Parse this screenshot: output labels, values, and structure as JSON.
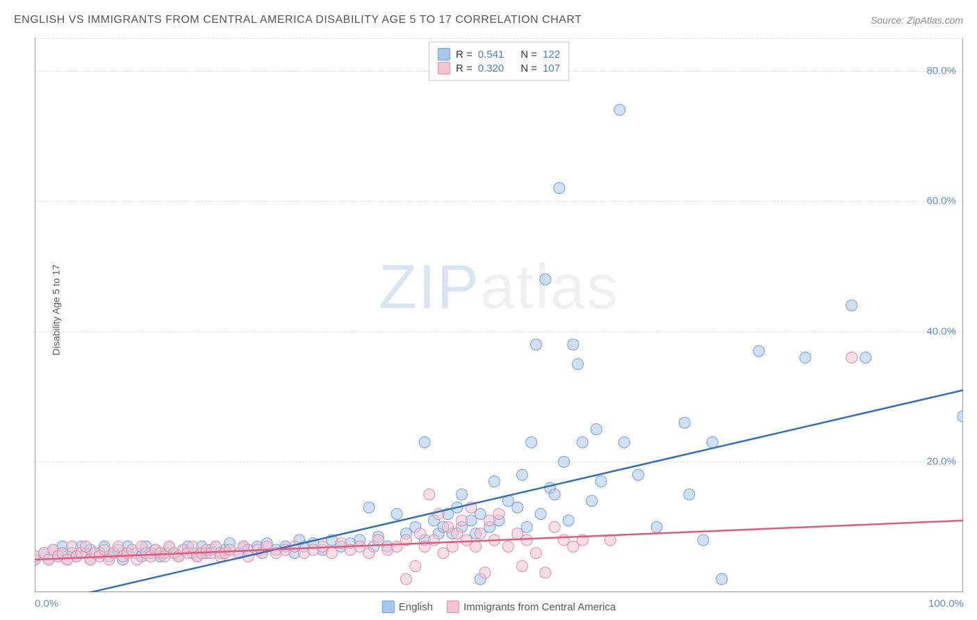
{
  "header": {
    "title": "ENGLISH VS IMMIGRANTS FROM CENTRAL AMERICA DISABILITY AGE 5 TO 17 CORRELATION CHART",
    "source": "Source: ZipAtlas.com"
  },
  "watermark": {
    "part1": "ZIP",
    "part2": "atlas"
  },
  "chart": {
    "type": "scatter",
    "y_axis_label": "Disability Age 5 to 17",
    "background_color": "#ffffff",
    "grid_color": "#dddddd",
    "axis_color": "#999999",
    "tick_color": "#5b8dd6",
    "xlim": [
      0,
      100
    ],
    "ylim": [
      0,
      85
    ],
    "x_ticks": [
      {
        "value": 0,
        "label": "0.0%"
      },
      {
        "value": 100,
        "label": "100.0%"
      }
    ],
    "y_ticks": [
      {
        "value": 20,
        "label": "20.0%"
      },
      {
        "value": 40,
        "label": "40.0%"
      },
      {
        "value": 60,
        "label": "60.0%"
      },
      {
        "value": 80,
        "label": "80.0%"
      }
    ],
    "marker_radius": 8,
    "marker_opacity": 0.55,
    "line_width": 2.5,
    "series": [
      {
        "name": "English",
        "fill": "#a9c6ec",
        "stroke": "#6f9fd8",
        "line_color": "#2f6fc1",
        "r_value": "0.541",
        "n_value": "122",
        "regression": {
          "x1": 0,
          "y1": -2,
          "x2": 100,
          "y2": 31
        },
        "points": [
          [
            0,
            5
          ],
          [
            1,
            6
          ],
          [
            1.5,
            5
          ],
          [
            2,
            6.5
          ],
          [
            2.5,
            5.5
          ],
          [
            3,
            6
          ],
          [
            3,
            7
          ],
          [
            3.5,
            5
          ],
          [
            4,
            6
          ],
          [
            4.5,
            5.5
          ],
          [
            5,
            7
          ],
          [
            5.5,
            6
          ],
          [
            6,
            6.5
          ],
          [
            6,
            5
          ],
          [
            7,
            6
          ],
          [
            7.5,
            7
          ],
          [
            8,
            5.5
          ],
          [
            8.5,
            6
          ],
          [
            9,
            6.5
          ],
          [
            9.5,
            5
          ],
          [
            10,
            6
          ],
          [
            10,
            7
          ],
          [
            11,
            6
          ],
          [
            11.5,
            5.5
          ],
          [
            12,
            7
          ],
          [
            12.5,
            6
          ],
          [
            13,
            6.5
          ],
          [
            13.5,
            5.5
          ],
          [
            14,
            6
          ],
          [
            14.5,
            7
          ],
          [
            15,
            6
          ],
          [
            15.5,
            5.5
          ],
          [
            16,
            6.5
          ],
          [
            16.5,
            7
          ],
          [
            17,
            6
          ],
          [
            17.5,
            5.5
          ],
          [
            18,
            7
          ],
          [
            18.5,
            6
          ],
          [
            19,
            6.5
          ],
          [
            19.5,
            7
          ],
          [
            20,
            6
          ],
          [
            20.5,
            6.5
          ],
          [
            21,
            7.5
          ],
          [
            22,
            6
          ],
          [
            22.5,
            7
          ],
          [
            23,
            6.5
          ],
          [
            24,
            7
          ],
          [
            24.5,
            6
          ],
          [
            25,
            7.5
          ],
          [
            26,
            6.5
          ],
          [
            27,
            7
          ],
          [
            28,
            6
          ],
          [
            28.5,
            8
          ],
          [
            29,
            7
          ],
          [
            30,
            7.5
          ],
          [
            31,
            6.5
          ],
          [
            32,
            8
          ],
          [
            33,
            7
          ],
          [
            34,
            7.5
          ],
          [
            35,
            8
          ],
          [
            36,
            13
          ],
          [
            36.5,
            7
          ],
          [
            37,
            8.5
          ],
          [
            38,
            7
          ],
          [
            39,
            12
          ],
          [
            40,
            9
          ],
          [
            41,
            10
          ],
          [
            42,
            8
          ],
          [
            42,
            23
          ],
          [
            43,
            11
          ],
          [
            43.5,
            9
          ],
          [
            44,
            10
          ],
          [
            44.5,
            12
          ],
          [
            45,
            9
          ],
          [
            45.5,
            13
          ],
          [
            46,
            10
          ],
          [
            46,
            15
          ],
          [
            47,
            11
          ],
          [
            47.5,
            9
          ],
          [
            48,
            12
          ],
          [
            48,
            2
          ],
          [
            49,
            10
          ],
          [
            49.5,
            17
          ],
          [
            50,
            11
          ],
          [
            51,
            14
          ],
          [
            52,
            13
          ],
          [
            52.5,
            18
          ],
          [
            53,
            10
          ],
          [
            53.5,
            23
          ],
          [
            54,
            38
          ],
          [
            54.5,
            12
          ],
          [
            55,
            48
          ],
          [
            55.5,
            16
          ],
          [
            56,
            15
          ],
          [
            56.5,
            62
          ],
          [
            57,
            20
          ],
          [
            57.5,
            11
          ],
          [
            58,
            38
          ],
          [
            58.5,
            35
          ],
          [
            59,
            23
          ],
          [
            60,
            14
          ],
          [
            60.5,
            25
          ],
          [
            61,
            17
          ],
          [
            63,
            74
          ],
          [
            63.5,
            23
          ],
          [
            65,
            18
          ],
          [
            67,
            10
          ],
          [
            70,
            26
          ],
          [
            70.5,
            15
          ],
          [
            72,
            8
          ],
          [
            73,
            23
          ],
          [
            74,
            2
          ],
          [
            78,
            37
          ],
          [
            83,
            36
          ],
          [
            88,
            44
          ],
          [
            89.5,
            36
          ],
          [
            100,
            27
          ]
        ]
      },
      {
        "name": "Immigrants from Central America",
        "fill": "#f3c3cf",
        "stroke": "#e28ba2",
        "line_color": "#e05a7c",
        "r_value": "0.320",
        "n_value": "107",
        "regression": {
          "x1": 0,
          "y1": 5,
          "x2": 100,
          "y2": 11
        },
        "points": [
          [
            0,
            5.5
          ],
          [
            1,
            6
          ],
          [
            1.5,
            5
          ],
          [
            2,
            6.5
          ],
          [
            2.5,
            5.5
          ],
          [
            3,
            6
          ],
          [
            3.5,
            5
          ],
          [
            4,
            7
          ],
          [
            4.5,
            5.5
          ],
          [
            5,
            6
          ],
          [
            5.5,
            7
          ],
          [
            6,
            5
          ],
          [
            6.5,
            6
          ],
          [
            7,
            5.5
          ],
          [
            7.5,
            6.5
          ],
          [
            8,
            5
          ],
          [
            8.5,
            6
          ],
          [
            9,
            7
          ],
          [
            9.5,
            5.5
          ],
          [
            10,
            6
          ],
          [
            10.5,
            6.5
          ],
          [
            11,
            5
          ],
          [
            11.5,
            7
          ],
          [
            12,
            6
          ],
          [
            12.5,
            5.5
          ],
          [
            13,
            6.5
          ],
          [
            13.5,
            6
          ],
          [
            14,
            5.5
          ],
          [
            14.5,
            7
          ],
          [
            15,
            6
          ],
          [
            15.5,
            5.5
          ],
          [
            16,
            6.5
          ],
          [
            16.5,
            6
          ],
          [
            17,
            7
          ],
          [
            17.5,
            5.5
          ],
          [
            18,
            6
          ],
          [
            18.5,
            6.5
          ],
          [
            19,
            6
          ],
          [
            19.5,
            7
          ],
          [
            20,
            5.5
          ],
          [
            20.5,
            6
          ],
          [
            21,
            6.5
          ],
          [
            22,
            6
          ],
          [
            22.5,
            7
          ],
          [
            23,
            5.5
          ],
          [
            24,
            6.5
          ],
          [
            24.5,
            6
          ],
          [
            25,
            7
          ],
          [
            26,
            6
          ],
          [
            27,
            6.5
          ],
          [
            28,
            7
          ],
          [
            29,
            6
          ],
          [
            30,
            6.5
          ],
          [
            31,
            7
          ],
          [
            32,
            6
          ],
          [
            33,
            7.5
          ],
          [
            34,
            6.5
          ],
          [
            35,
            7
          ],
          [
            36,
            6
          ],
          [
            37,
            8
          ],
          [
            38,
            6.5
          ],
          [
            39,
            7
          ],
          [
            40,
            8
          ],
          [
            40,
            2
          ],
          [
            41,
            4
          ],
          [
            41.5,
            9
          ],
          [
            42,
            7
          ],
          [
            42.5,
            15
          ],
          [
            43,
            8
          ],
          [
            43.5,
            12
          ],
          [
            44,
            6
          ],
          [
            44.5,
            10
          ],
          [
            45,
            7
          ],
          [
            45.5,
            9
          ],
          [
            46,
            11
          ],
          [
            46.5,
            8
          ],
          [
            47,
            13
          ],
          [
            47.5,
            7
          ],
          [
            48,
            9
          ],
          [
            48.5,
            3
          ],
          [
            49,
            11
          ],
          [
            49.5,
            8
          ],
          [
            50,
            12
          ],
          [
            51,
            7
          ],
          [
            52,
            9
          ],
          [
            52.5,
            4
          ],
          [
            53,
            8
          ],
          [
            54,
            6
          ],
          [
            55,
            3
          ],
          [
            56,
            10
          ],
          [
            57,
            8
          ],
          [
            58,
            7
          ],
          [
            59,
            8
          ],
          [
            62,
            8
          ],
          [
            88,
            36
          ]
        ]
      }
    ],
    "legend_bottom": [
      {
        "label": "English",
        "fill": "#a9c6ec",
        "stroke": "#6f9fd8"
      },
      {
        "label": "Immigrants from Central America",
        "fill": "#f3c3cf",
        "stroke": "#e28ba2"
      }
    ]
  }
}
